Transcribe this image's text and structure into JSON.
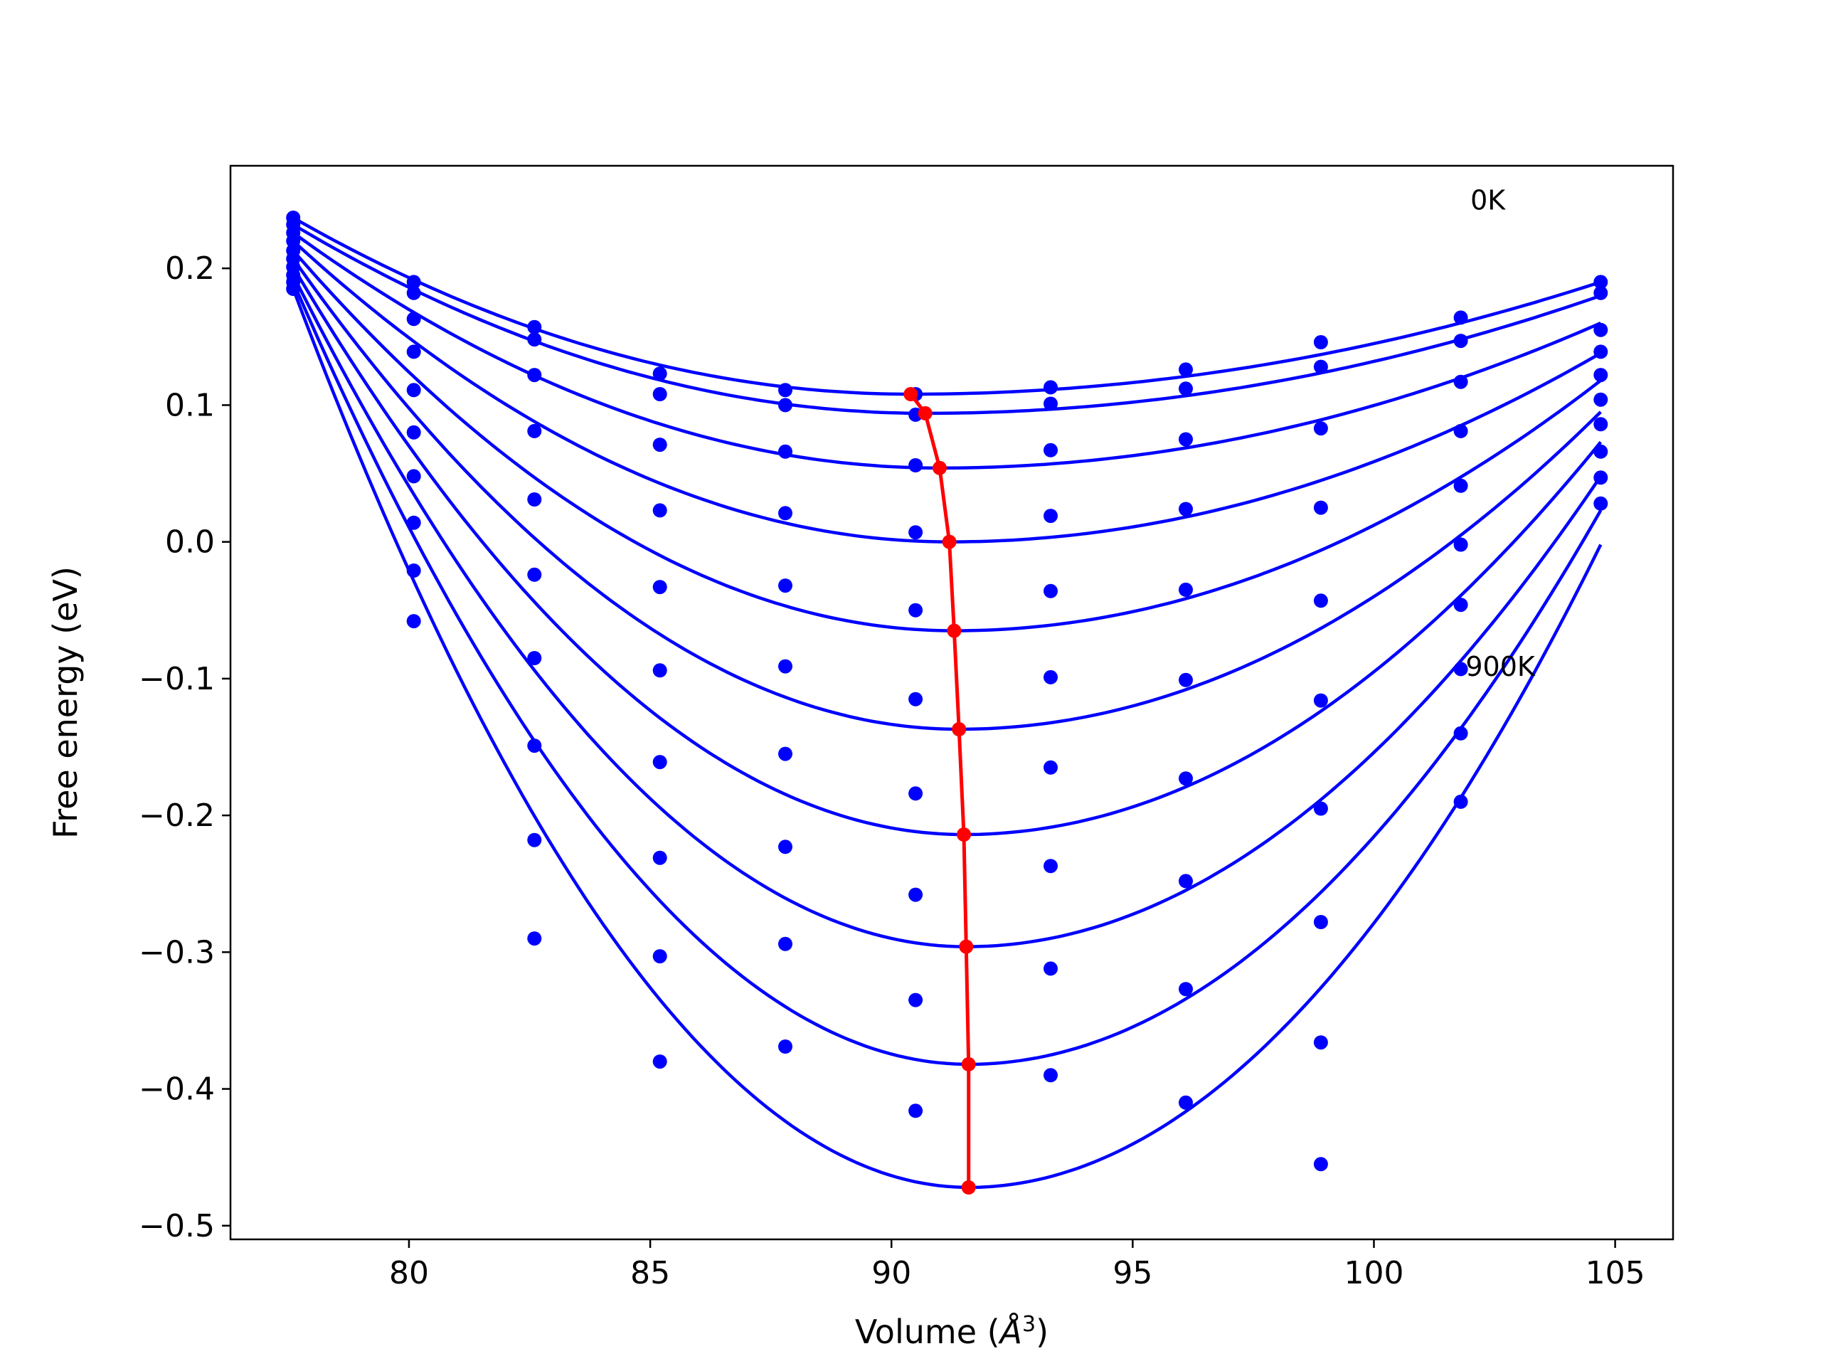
{
  "chart_data": {
    "type": "line",
    "xlabel": "Volume ($\\AA^3$)",
    "xlabel_parts": {
      "text": "Volume (",
      "symbol": "Å",
      "superscript": "3",
      "close": ")"
    },
    "ylabel": "Free energy (eV)",
    "xlim": [
      76.3,
      106.2
    ],
    "ylim": [
      -0.51,
      0.275
    ],
    "xticks": [
      80,
      85,
      90,
      95,
      100,
      105
    ],
    "yticks": [
      -0.5,
      -0.4,
      -0.3,
      -0.2,
      -0.1,
      0.0,
      0.1,
      0.2
    ],
    "ytick_labels": [
      "−0.5",
      "−0.4",
      "−0.3",
      "−0.2",
      "−0.1",
      "0.0",
      "0.1",
      "0.2"
    ],
    "grid": false,
    "annotations": [
      {
        "text": "0K",
        "x": 102.0,
        "y": 0.243
      },
      {
        "text": "900K",
        "x": 101.9,
        "y": -0.098
      }
    ],
    "volumes": [
      77.6,
      80.1,
      82.6,
      85.2,
      87.8,
      90.5,
      93.3,
      96.1,
      98.9,
      101.8,
      104.7
    ],
    "series": [
      {
        "fit_min": [
          90.4,
          0.108
        ],
        "fit_left": 0.237,
        "fit_right": 0.19,
        "points": [
          0.237,
          0.19,
          0.157,
          0.123,
          0.111,
          0.108,
          0.113,
          0.126,
          0.146,
          0.164,
          0.19
        ]
      },
      {
        "fit_min": [
          90.7,
          0.094
        ],
        "fit_left": 0.232,
        "fit_right": 0.18,
        "points": [
          0.232,
          0.182,
          0.148,
          0.108,
          0.1,
          0.093,
          0.101,
          0.112,
          0.128,
          0.147,
          0.182
        ]
      },
      {
        "fit_min": [
          91.0,
          0.054
        ],
        "fit_left": 0.226,
        "fit_right": 0.16,
        "points": [
          0.226,
          0.163,
          0.122,
          0.071,
          0.066,
          0.056,
          0.067,
          0.075,
          0.083,
          0.117,
          0.155
        ]
      },
      {
        "fit_min": [
          91.2,
          0.0
        ],
        "fit_left": 0.22,
        "fit_right": 0.138,
        "points": [
          0.22,
          0.139,
          0.081,
          0.023,
          0.021,
          0.007,
          0.019,
          0.024,
          0.025,
          0.081,
          0.139
        ]
      },
      {
        "fit_min": [
          91.3,
          -0.065
        ],
        "fit_left": 0.213,
        "fit_right": 0.118,
        "points": [
          0.213,
          0.111,
          0.031,
          -0.033,
          -0.032,
          -0.05,
          -0.036,
          -0.035,
          -0.043,
          0.041,
          0.122
        ]
      },
      {
        "fit_min": [
          91.4,
          -0.137
        ],
        "fit_left": 0.207,
        "fit_right": 0.095,
        "points": [
          0.207,
          0.08,
          -0.024,
          -0.094,
          -0.091,
          -0.115,
          -0.099,
          -0.101,
          -0.116,
          -0.002,
          0.104
        ]
      },
      {
        "fit_min": [
          91.5,
          -0.214
        ],
        "fit_left": 0.201,
        "fit_right": 0.073,
        "points": [
          0.201,
          0.048,
          -0.085,
          -0.161,
          -0.155,
          -0.184,
          -0.165,
          -0.173,
          -0.195,
          -0.046,
          0.086
        ]
      },
      {
        "fit_min": [
          91.55,
          -0.296
        ],
        "fit_left": 0.195,
        "fit_right": 0.048,
        "points": [
          0.195,
          0.014,
          -0.149,
          -0.231,
          -0.223,
          -0.258,
          -0.237,
          -0.248,
          -0.278,
          -0.093,
          0.066
        ]
      },
      {
        "fit_min": [
          91.6,
          -0.382
        ],
        "fit_left": 0.19,
        "fit_right": 0.023,
        "points": [
          0.19,
          -0.021,
          -0.218,
          -0.303,
          -0.294,
          -0.335,
          -0.312,
          -0.327,
          -0.366,
          -0.14,
          0.047
        ]
      },
      {
        "fit_min": [
          91.6,
          -0.472
        ],
        "fit_left": 0.185,
        "fit_right": -0.002,
        "points": [
          0.185,
          -0.058,
          -0.29,
          -0.38,
          -0.369,
          -0.416,
          -0.39,
          -0.41,
          -0.455,
          -0.19,
          0.028
        ]
      }
    ],
    "minima_curve": {
      "x": [
        90.4,
        90.7,
        91.0,
        91.2,
        91.3,
        91.4,
        91.5,
        91.55,
        91.6,
        91.6
      ],
      "y": [
        0.108,
        0.094,
        0.054,
        0.0,
        -0.065,
        -0.137,
        -0.214,
        -0.296,
        -0.382,
        -0.472
      ]
    },
    "colors": {
      "curves": "#0000ff",
      "minima": "#ff0000",
      "axes": "#000000"
    }
  }
}
